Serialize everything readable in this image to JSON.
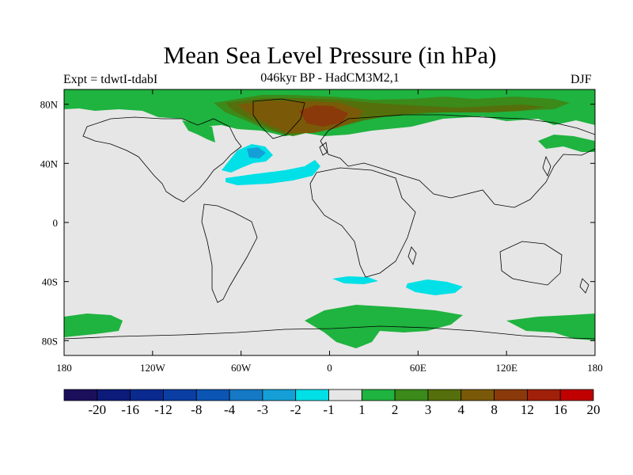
{
  "title": "Mean Sea Level Pressure (in hPa)",
  "left_label": "Expt = tdwtI-tdabI",
  "center_label": "046kyr BP - HadCM3M2,1",
  "season_label": "DJF",
  "map": {
    "projection": "cylindrical-equidistant",
    "ocean_color": "#e6e6e6",
    "lon_range": [
      -180,
      180
    ],
    "lat_range": [
      -90,
      90
    ],
    "x_ticks": [
      {
        "lon": -180,
        "label": "180"
      },
      {
        "lon": -120,
        "label": "120W"
      },
      {
        "lon": -60,
        "label": "60W"
      },
      {
        "lon": 0,
        "label": "0"
      },
      {
        "lon": 60,
        "label": "60E"
      },
      {
        "lon": 120,
        "label": "120E"
      },
      {
        "lon": 180,
        "label": "180"
      }
    ],
    "y_ticks": [
      {
        "lat": 80,
        "label": "80N"
      },
      {
        "lat": 40,
        "label": "40N"
      },
      {
        "lat": 0,
        "label": "0"
      },
      {
        "lat": -40,
        "label": "40S"
      },
      {
        "lat": -80,
        "label": "80S"
      }
    ]
  },
  "colorbar": {
    "colors": [
      "#1b0f5c",
      "#0c1a7a",
      "#0a2a8f",
      "#0a3ea3",
      "#0b55b4",
      "#1579c6",
      "#14a0d6",
      "#00e0e6",
      "#e6e6e6",
      "#1fb33f",
      "#3b8a1a",
      "#556f0c",
      "#7a5a08",
      "#8a3a0a",
      "#a0200a",
      "#c00000"
    ],
    "labels": [
      "-20",
      "-16",
      "-12",
      "-8",
      "-4",
      "-3",
      "-2",
      "-1",
      "1",
      "2",
      "3",
      "4",
      "8",
      "12",
      "16",
      "20"
    ]
  },
  "chart_data": {
    "type": "heatmap",
    "title": "Mean Sea Level Pressure (in hPa)",
    "subtitle": "046kyr BP - HadCM3M2,1",
    "annotations": [
      "Expt = tdwtI-tdabI",
      "DJF"
    ],
    "x_ticks": [
      "180",
      "120W",
      "60W",
      "0",
      "60E",
      "120E",
      "180"
    ],
    "y_ticks": [
      "80N",
      "40N",
      "0",
      "40S",
      "80S"
    ],
    "levels": [
      -20,
      -16,
      -12,
      -8,
      -4,
      -3,
      -2,
      -1,
      1,
      2,
      3,
      4,
      8,
      12,
      16,
      20
    ],
    "features": [
      {
        "region": "Arctic / Greenland-Norwegian Sea",
        "value_range": [
          4,
          12
        ],
        "lon_range": [
          -40,
          20
        ],
        "lat_range": [
          65,
          85
        ]
      },
      {
        "region": "Arctic band",
        "value_range": [
          1,
          4
        ],
        "lon_range": [
          -180,
          180
        ],
        "lat_range": [
          60,
          90
        ]
      },
      {
        "region": "North Atlantic",
        "value_range": [
          -3,
          -1
        ],
        "lon_range": [
          -75,
          -5
        ],
        "lat_range": [
          28,
          52
        ]
      },
      {
        "region": "Southern Indian Ocean",
        "value_range": [
          -2,
          -1
        ],
        "lon_range": [
          30,
          85
        ],
        "lat_range": [
          -48,
          -38
        ]
      },
      {
        "region": "Southern Ocean / Antarctica",
        "value_range": [
          1,
          2
        ],
        "lon_range": [
          -180,
          180
        ],
        "lat_range": [
          -90,
          -60
        ]
      }
    ]
  }
}
